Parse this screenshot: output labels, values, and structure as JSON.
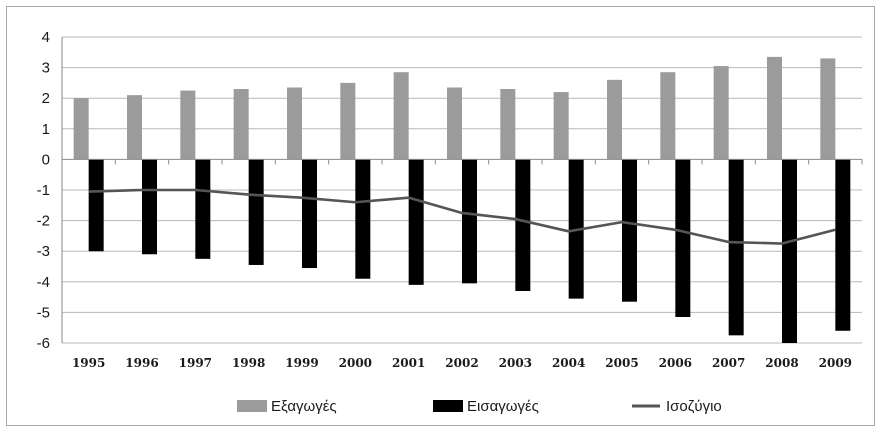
{
  "chart_data": {
    "type": "bar",
    "title": "",
    "xlabel": "",
    "ylabel": "",
    "ylim": [
      -6,
      4
    ],
    "yticks": [
      4,
      3,
      2,
      1,
      0,
      -1,
      -2,
      -3,
      -4,
      -5,
      -6
    ],
    "grid": true,
    "legend_position": "bottom",
    "categories": [
      "1995",
      "1996",
      "1997",
      "1998",
      "1999",
      "2000",
      "2001",
      "2002",
      "2003",
      "2004",
      "2005",
      "2006",
      "2007",
      "2008",
      "2009"
    ],
    "series": [
      {
        "name": "Εξαγωγές",
        "kind": "bar",
        "color": "#9b9b9b",
        "values": [
          2.0,
          2.1,
          2.25,
          2.3,
          2.35,
          2.5,
          2.85,
          2.35,
          2.3,
          2.2,
          2.6,
          2.85,
          3.05,
          3.35,
          3.3
        ]
      },
      {
        "name": "Εισαγωγές",
        "kind": "bar",
        "color": "#000000",
        "values": [
          -3.0,
          -3.1,
          -3.25,
          -3.45,
          -3.55,
          -3.9,
          -4.1,
          -4.05,
          -4.3,
          -4.55,
          -4.65,
          -5.15,
          -5.75,
          -6.0,
          -5.6
        ]
      },
      {
        "name": "Ισοζύγιο",
        "kind": "line",
        "color": "#555555",
        "values": [
          -1.05,
          -1.0,
          -1.0,
          -1.15,
          -1.25,
          -1.4,
          -1.25,
          -1.75,
          -1.95,
          -2.35,
          -2.05,
          -2.3,
          -2.7,
          -2.75,
          -2.3
        ]
      }
    ]
  }
}
